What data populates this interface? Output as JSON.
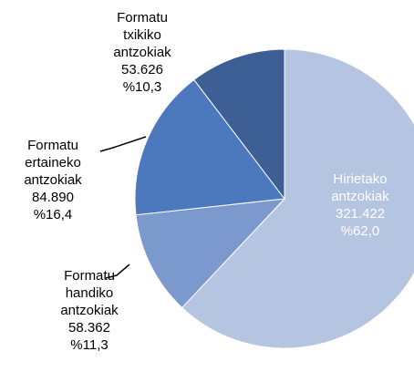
{
  "chart_data": {
    "type": "pie",
    "categories": [
      "Hirietako antzokiak",
      "Formatu handiko antzokiak",
      "Formatu ertaineko antzokiak",
      "Formatu txikiko antzokiak"
    ],
    "values": [
      321422,
      58362,
      84890,
      53626
    ],
    "value_labels": [
      "321.422",
      "58.362",
      "84.890",
      "53.626"
    ],
    "percents": [
      62.0,
      11.3,
      16.4,
      10.3
    ],
    "percent_labels": [
      "%62,0",
      "%11,3",
      "%16,4",
      "%10,3"
    ],
    "colors": [
      "#b4c4e1",
      "#7c99cd",
      "#4c79bd",
      "#3d5f95"
    ]
  }
}
